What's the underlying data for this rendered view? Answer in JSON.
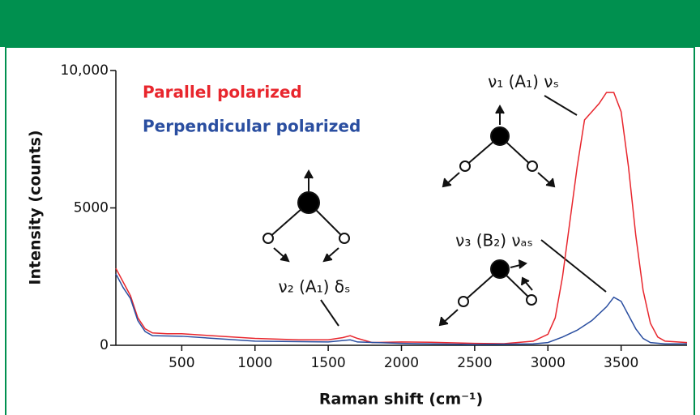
{
  "chart_data": {
    "type": "line",
    "xlabel": "Raman shift (cm⁻¹)",
    "ylabel": "Intensity (counts)",
    "xlim": [
      50,
      3950
    ],
    "ylim": [
      0,
      10000
    ],
    "xticks": [
      500,
      1000,
      1500,
      2000,
      2500,
      3000,
      3500
    ],
    "yticks": [
      0,
      5000,
      {
        "value": 10000,
        "label": "10,000"
      }
    ],
    "legend": "top-left",
    "series": [
      {
        "name": "Parallel polarized",
        "color": "#e8262d",
        "x": [
          50,
          100,
          150,
          200,
          250,
          300,
          400,
          500,
          700,
          1000,
          1300,
          1500,
          1600,
          1650,
          1700,
          1800,
          2000,
          2200,
          2500,
          2700,
          2900,
          3000,
          3050,
          3100,
          3150,
          3200,
          3250,
          3300,
          3350,
          3400,
          3450,
          3500,
          3550,
          3600,
          3650,
          3700,
          3750,
          3800,
          3950
        ],
        "values": [
          2800,
          2300,
          1800,
          1000,
          600,
          450,
          420,
          420,
          350,
          250,
          200,
          200,
          280,
          350,
          250,
          100,
          120,
          110,
          70,
          60,
          150,
          400,
          1000,
          2500,
          4500,
          6500,
          8200,
          8500,
          8800,
          9200,
          9200,
          8500,
          6500,
          4000,
          2000,
          800,
          300,
          150,
          100
        ]
      },
      {
        "name": "Perpendicular polarized",
        "color": "#2a4ea0",
        "x": [
          50,
          100,
          150,
          200,
          250,
          300,
          500,
          1000,
          1500,
          1650,
          1700,
          2000,
          2500,
          2900,
          3000,
          3100,
          3200,
          3300,
          3400,
          3450,
          3500,
          3550,
          3600,
          3650,
          3700,
          3800,
          3950
        ],
        "values": [
          2600,
          2100,
          1700,
          900,
          500,
          350,
          330,
          150,
          120,
          200,
          120,
          70,
          30,
          50,
          100,
          300,
          550,
          900,
          1400,
          1750,
          1600,
          1100,
          600,
          250,
          100,
          50,
          50
        ]
      }
    ],
    "annotations": [
      "ν₁ (A₁) νₛ",
      "ν₂ (A₁) δₛ",
      "ν₃ (B₂) νₐₛ"
    ]
  }
}
